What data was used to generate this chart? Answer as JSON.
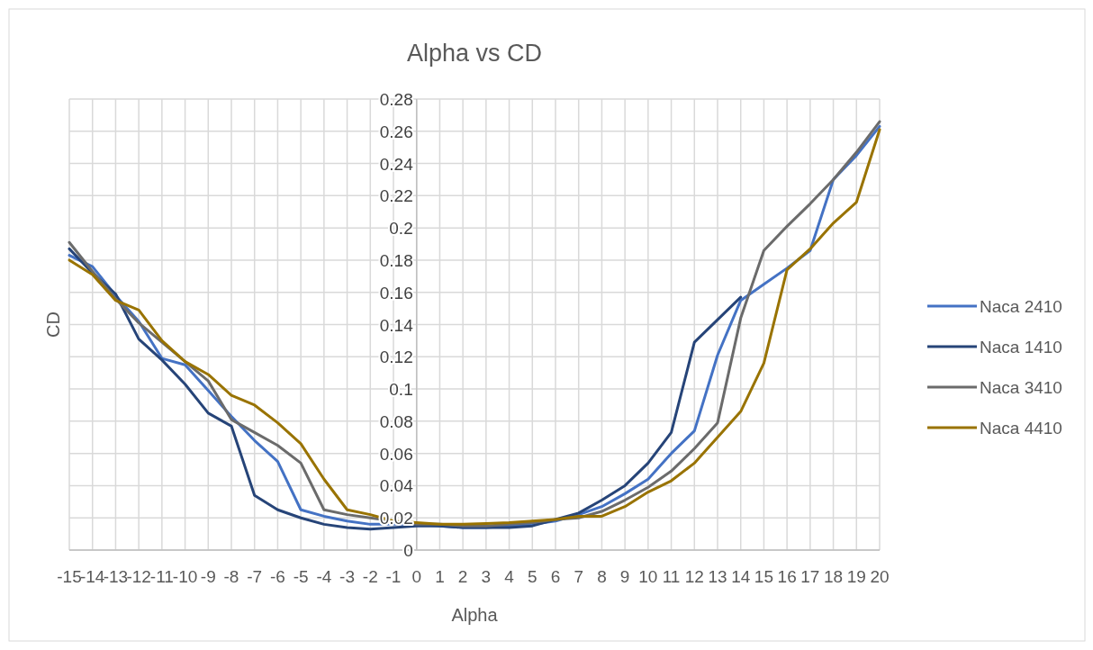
{
  "chart_data": {
    "type": "line",
    "title": "Alpha vs CD",
    "xlabel": "Alpha",
    "ylabel": "CD",
    "x": [
      -15,
      -14,
      -13,
      -12,
      -11,
      -10,
      -9,
      -8,
      -7,
      -6,
      -5,
      -4,
      -3,
      -2,
      -1,
      0,
      1,
      2,
      3,
      4,
      5,
      6,
      7,
      8,
      9,
      10,
      11,
      12,
      13,
      14,
      15,
      16,
      17,
      18,
      19,
      20
    ],
    "xlim": [
      -15,
      20
    ],
    "xticks": [
      -15,
      -14,
      -13,
      -12,
      -11,
      -10,
      -9,
      -8,
      -7,
      -6,
      -5,
      -4,
      -3,
      -2,
      -1,
      0,
      1,
      2,
      3,
      4,
      5,
      6,
      7,
      8,
      9,
      10,
      11,
      12,
      13,
      14,
      15,
      16,
      17,
      18,
      19,
      20
    ],
    "ylim": [
      0,
      0.28
    ],
    "yticks": [
      0,
      0.02,
      0.04,
      0.06,
      0.08,
      0.1,
      0.12,
      0.14,
      0.16,
      0.18,
      0.2,
      0.22,
      0.24,
      0.26,
      0.28
    ],
    "grid": true,
    "legend": "right",
    "line_style": "solid",
    "series": [
      {
        "name": "Naca 2410",
        "color": "#4472c4",
        "values": [
          0.183,
          0.176,
          0.158,
          0.142,
          0.119,
          0.115,
          0.099,
          0.083,
          0.068,
          0.055,
          0.025,
          0.021,
          0.018,
          0.016,
          0.016,
          0.016,
          0.015,
          0.014,
          0.014,
          0.015,
          0.016,
          0.018,
          0.022,
          0.027,
          0.035,
          0.044,
          0.06,
          0.074,
          0.121,
          0.155,
          0.165,
          0.175,
          0.186,
          0.23,
          0.245,
          0.263
        ]
      },
      {
        "name": "Naca 1410",
        "color": "#264478",
        "values": [
          0.187,
          0.172,
          0.159,
          0.131,
          0.118,
          0.103,
          0.085,
          0.077,
          0.034,
          0.025,
          0.02,
          0.016,
          0.014,
          0.013,
          0.014,
          0.015,
          0.015,
          0.014,
          0.014,
          0.014,
          0.015,
          0.019,
          0.023,
          0.031,
          0.04,
          0.054,
          0.073,
          0.129,
          0.143,
          0.157,
          null,
          null,
          null,
          null,
          null,
          null
        ]
      },
      {
        "name": "Naca 3410",
        "color": "#6b6b6b",
        "values": [
          0.191,
          0.173,
          0.156,
          0.141,
          0.129,
          0.117,
          0.105,
          0.081,
          0.073,
          0.065,
          0.054,
          0.025,
          0.022,
          0.02,
          0.018,
          0.016,
          0.016,
          0.015,
          0.015,
          0.016,
          0.017,
          0.019,
          0.02,
          0.024,
          0.031,
          0.039,
          0.049,
          0.063,
          0.079,
          0.144,
          0.186,
          0.201,
          0.215,
          0.23,
          0.247,
          0.266
        ]
      },
      {
        "name": "Naca 4410",
        "color": "#997300",
        "values": [
          0.18,
          0.171,
          0.155,
          0.149,
          0.13,
          0.117,
          0.109,
          0.096,
          0.09,
          0.079,
          0.066,
          0.044,
          0.025,
          0.022,
          0.018,
          0.017,
          0.016,
          0.016,
          0.0165,
          0.017,
          0.018,
          0.019,
          0.021,
          0.021,
          0.027,
          0.036,
          0.043,
          0.054,
          0.07,
          0.086,
          0.116,
          0.174,
          0.187,
          0.203,
          0.216,
          0.261
        ]
      }
    ]
  }
}
